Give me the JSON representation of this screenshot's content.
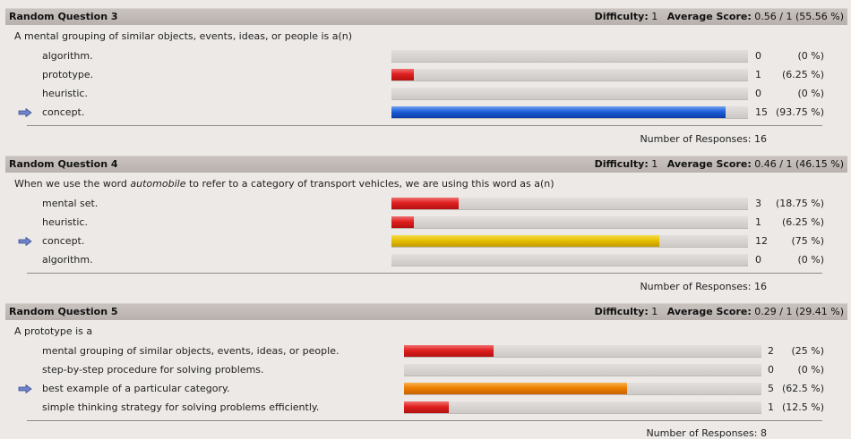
{
  "questions": [
    {
      "title": "Random Question 3",
      "difficulty_label": "Difficulty:",
      "difficulty": "1",
      "avg_label": "Average Score:",
      "avg": "0.56 / 1 (55.56 %)",
      "text_html": "A mental grouping of similar objects, events, ideas, or people is a(n)",
      "responses_label": "Number of Responses:",
      "responses": "16",
      "options": [
        {
          "label": "algorithm.",
          "count": "0",
          "pct": "(0 %)",
          "fraction": 0,
          "color": "#e02020",
          "correct": false
        },
        {
          "label": "prototype.",
          "count": "1",
          "pct": "(6.25 %)",
          "fraction": 0.0625,
          "color": "#e02020",
          "correct": false
        },
        {
          "label": "heuristic.",
          "count": "0",
          "pct": "(0 %)",
          "fraction": 0,
          "color": "#e02020",
          "correct": false
        },
        {
          "label": "concept.",
          "count": "15",
          "pct": "(93.75 %)",
          "fraction": 0.9375,
          "color": "#1f5fd8",
          "correct": true
        }
      ]
    },
    {
      "title": "Random Question 4",
      "difficulty_label": "Difficulty:",
      "difficulty": "1",
      "avg_label": "Average Score:",
      "avg": "0.46 / 1 (46.15 %)",
      "text_pre": "When we use the word ",
      "text_em": "automobile",
      "text_post": " to refer to a category of transport vehicles, we are using this word as a(n)",
      "responses_label": "Number of Responses:",
      "responses": "16",
      "options": [
        {
          "label": "mental set.",
          "count": "3",
          "pct": "(18.75 %)",
          "fraction": 0.1875,
          "color": "#e02020",
          "correct": false
        },
        {
          "label": "heuristic.",
          "count": "1",
          "pct": "(6.25 %)",
          "fraction": 0.0625,
          "color": "#e02020",
          "correct": false
        },
        {
          "label": "concept.",
          "count": "12",
          "pct": "(75 %)",
          "fraction": 0.75,
          "color": "#e6c000",
          "correct": true
        },
        {
          "label": "algorithm.",
          "count": "0",
          "pct": "(0 %)",
          "fraction": 0,
          "color": "#e02020",
          "correct": false
        }
      ]
    },
    {
      "title": "Random Question 5",
      "difficulty_label": "Difficulty:",
      "difficulty": "1",
      "avg_label": "Average Score:",
      "avg": "0.29 / 1 (29.41 %)",
      "text_html": "A prototype is a",
      "responses_label": "Number of Responses:",
      "responses": "8",
      "options": [
        {
          "label": "mental grouping of similar objects, events, ideas, or people.",
          "count": "2",
          "pct": "(25 %)",
          "fraction": 0.25,
          "color": "#e02020",
          "correct": false
        },
        {
          "label": "step-by-step procedure for solving problems.",
          "count": "0",
          "pct": "(0 %)",
          "fraction": 0,
          "color": "#e02020",
          "correct": false
        },
        {
          "label": "best example of a particular category.",
          "count": "5",
          "pct": "(62.5 %)",
          "fraction": 0.625,
          "color": "#ee8000",
          "correct": true
        },
        {
          "label": "simple thinking strategy for solving problems efficiently.",
          "count": "1",
          "pct": "(12.5 %)",
          "fraction": 0.125,
          "color": "#e02020",
          "correct": false
        }
      ]
    }
  ],
  "icons": {
    "correct_marker": "right-arrow-icon"
  }
}
